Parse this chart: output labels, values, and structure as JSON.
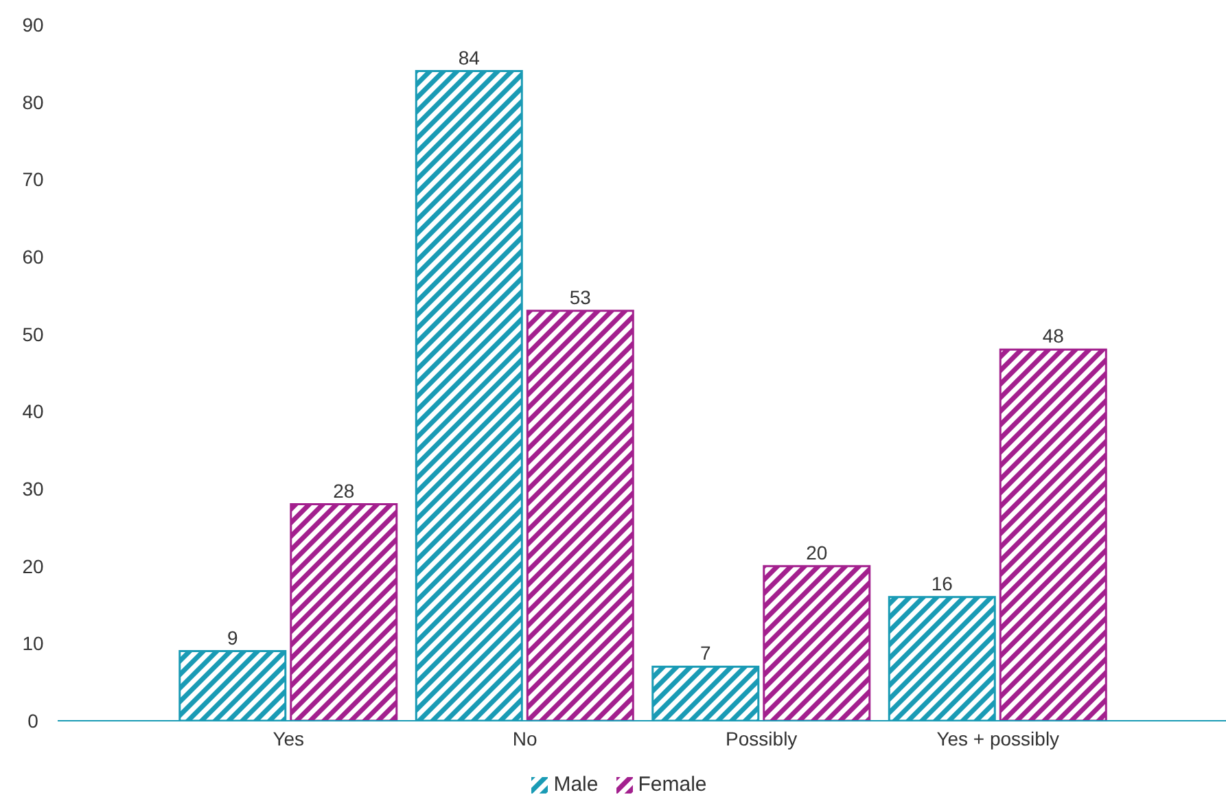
{
  "chart_data": {
    "type": "bar",
    "categories": [
      "Yes",
      "No",
      "Possibly",
      "Yes + possibly"
    ],
    "series": [
      {
        "name": "Male",
        "color": "#1a9bb5",
        "values": [
          9,
          84,
          7,
          16
        ]
      },
      {
        "name": "Female",
        "color": "#a3208e",
        "values": [
          28,
          53,
          20,
          48
        ]
      }
    ],
    "ylim": [
      0,
      90
    ],
    "yticks": [
      0,
      10,
      20,
      30,
      40,
      50,
      60,
      70,
      80,
      90
    ],
    "legend": "bottom",
    "data_labels": true
  }
}
